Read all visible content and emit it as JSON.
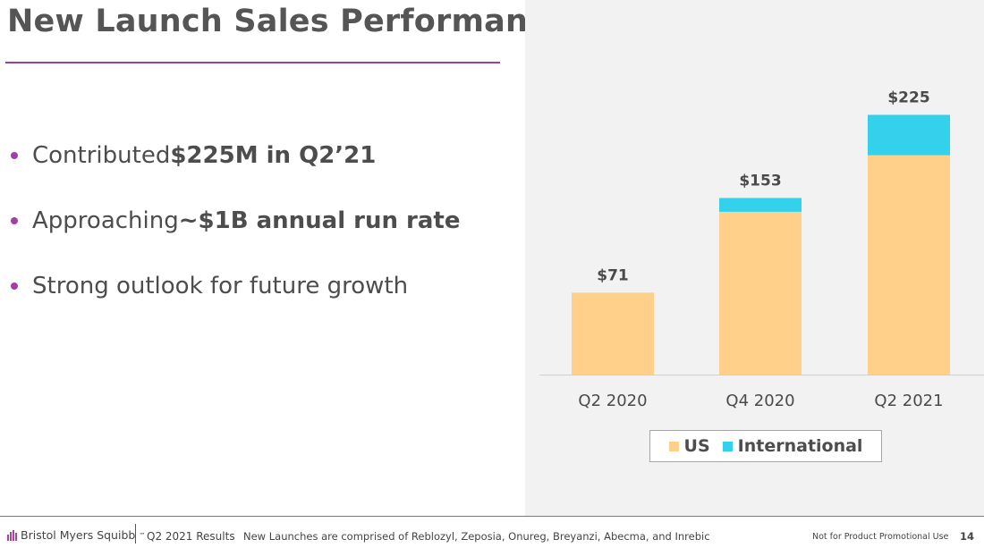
{
  "slide": {
    "title": "New Launch Sales Performance",
    "accent_color": "#a13d9f"
  },
  "bullets": [
    {
      "text": "Contributed ",
      "bold": "$225M in Q2’21"
    },
    {
      "text": "Approaching ",
      "bold": "~$1B annual run rate"
    },
    {
      "text": "Strong outlook for future growth",
      "bold": ""
    }
  ],
  "chart_data": {
    "type": "bar",
    "stacked": true,
    "categories": [
      "Q2 2020",
      "Q4 2020",
      "Q2 2021"
    ],
    "series": [
      {
        "name": "US",
        "color": "#ffd08a",
        "values": [
          71,
          141,
          190
        ]
      },
      {
        "name": "International",
        "color": "#33d1ec",
        "values": [
          0,
          12,
          35
        ]
      }
    ],
    "totals": [
      71,
      153,
      225
    ],
    "total_labels": [
      "$71",
      "$153",
      "$225"
    ],
    "ylim": [
      0,
      230
    ],
    "grid": false,
    "legend_position": "bottom"
  },
  "footer": {
    "company": "Bristol Myers Squibb",
    "trademark": "™",
    "section": "Q2 2021 Results",
    "note": "New Launches are comprised of Reblozyl, Zeposia, Onureg, Breyanzi, Abecma, and Inrebic",
    "disclaimer": "Not for Product Promotional Use",
    "page_number": "14"
  }
}
